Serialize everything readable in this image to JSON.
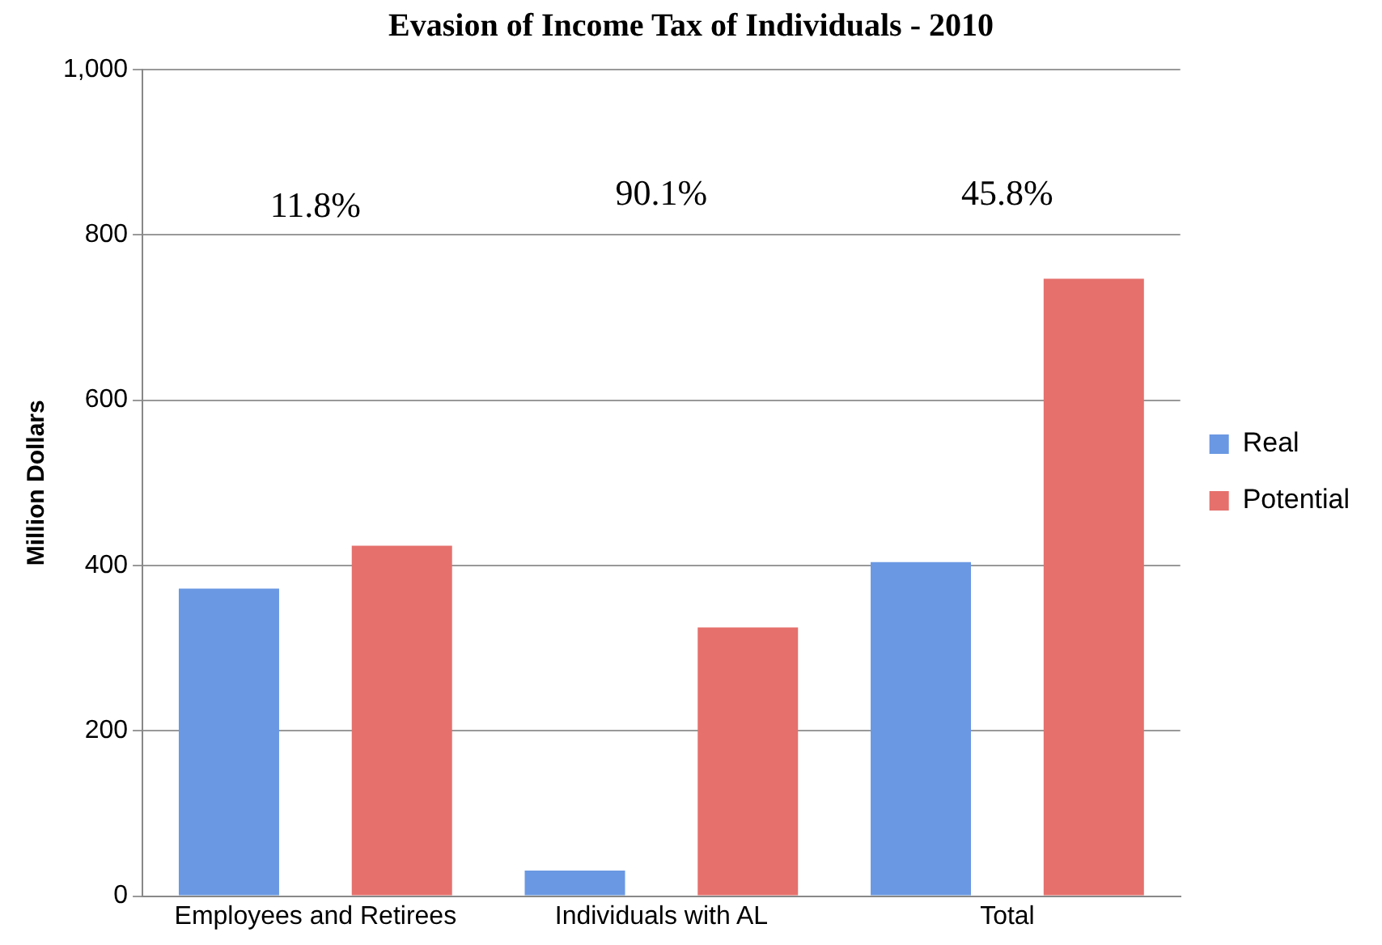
{
  "chart_data": {
    "type": "bar",
    "title": "Evasion of Income Tax of Individuals - 2010",
    "ylabel": "Million Dollars",
    "categories": [
      "Employees and Retirees",
      "Individuals with AL",
      "Total"
    ],
    "series": [
      {
        "name": "Real",
        "color": "#6a98e2",
        "values": [
          372,
          31,
          404
        ]
      },
      {
        "name": "Potential",
        "color": "#e5706c",
        "values": [
          424,
          325,
          747
        ]
      }
    ],
    "ylim": [
      0,
      1000
    ],
    "yticks": [
      0,
      200,
      400,
      600,
      800,
      {
        "value": 1000,
        "label": "1,000"
      }
    ],
    "grid": "y",
    "legend": "right",
    "annotations": [
      "11.8%",
      "90.1%",
      "45.8%"
    ]
  }
}
